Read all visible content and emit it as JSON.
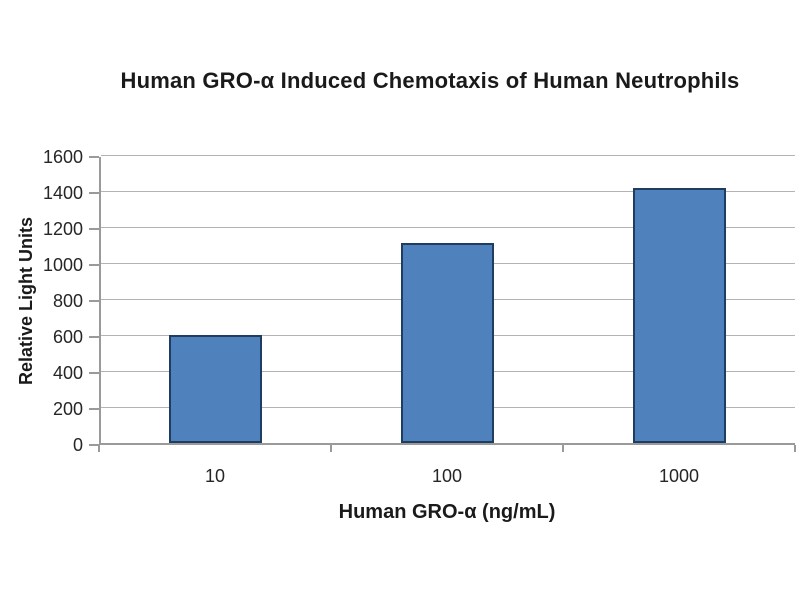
{
  "chart_data": {
    "type": "bar",
    "title": "Human GRO-α Induced Chemotaxis of Human Neutrophils",
    "xlabel": "Human GRO-α (ng/mL)",
    "ylabel": "Relative Light Units",
    "categories": [
      "10",
      "100",
      "1000"
    ],
    "values": [
      600,
      1110,
      1415
    ],
    "ylim": [
      0,
      1600
    ],
    "ytick_step": 200,
    "yticks": [
      0,
      200,
      400,
      600,
      800,
      1000,
      1200,
      1400,
      1600
    ],
    "grid": "horizontal",
    "legend_position": "none",
    "bar_fill": "#4f81bd",
    "bar_border": "#1f3c61",
    "gridline_color": "#b3b3b3",
    "axis_color": "#9a9a9a",
    "text_color": "#1a1a1a"
  }
}
